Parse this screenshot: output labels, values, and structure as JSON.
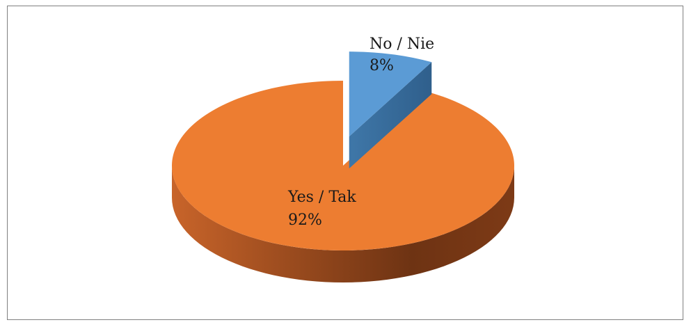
{
  "chart_data": {
    "type": "pie",
    "title": "",
    "style": "3d-exploded",
    "legend": "none",
    "slices": [
      {
        "label": "No / Nie",
        "value": 8,
        "percent_label": "8%",
        "color": "#5b9bd5"
      },
      {
        "label": "Yes / Tak",
        "value": 92,
        "percent_label": "92%",
        "color": "#ed7d31"
      }
    ]
  }
}
